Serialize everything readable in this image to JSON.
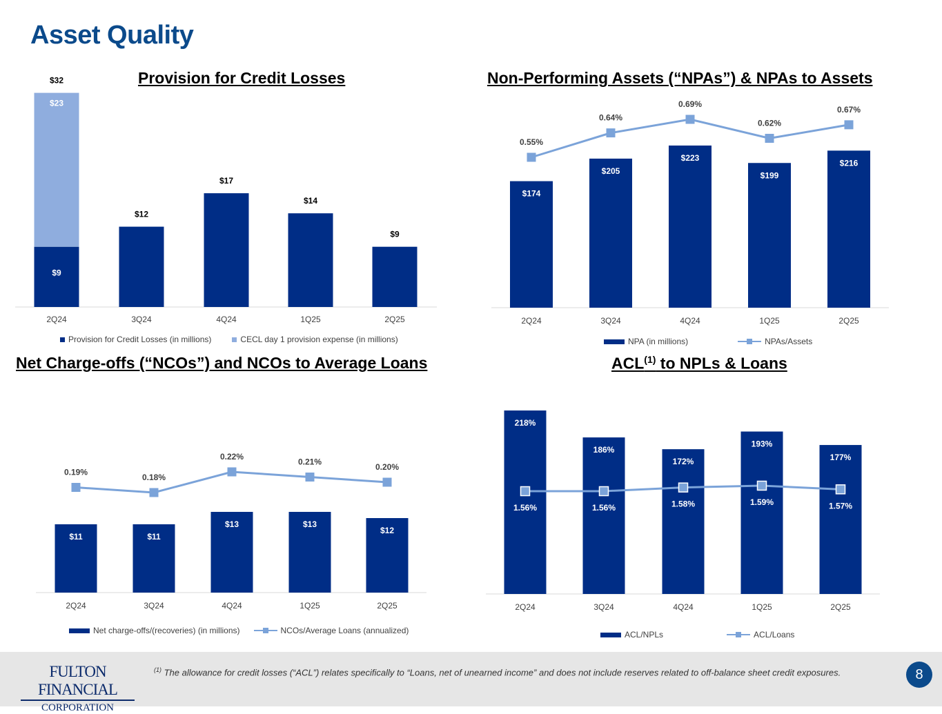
{
  "page": {
    "title": "Asset Quality",
    "page_number": "8",
    "company_line1": "FULTON FINANCIAL",
    "company_line2": "CORPORATION",
    "footnote_marker": "(1)",
    "footnote_text": " The allowance for credit losses (“ACL”) relates specifically to “Loans, net of unearned income” and does not include reserves related to off-balance sheet credit exposures."
  },
  "colors": {
    "dark_bar": "#002d86",
    "light_bar": "#8fadde",
    "line": "#7ba3d9",
    "title_blue": "#0b4a8b"
  },
  "chart_data": [
    {
      "id": "provision",
      "type": "bar",
      "title": "Provision for Credit Losses",
      "categories": [
        "2Q24",
        "3Q24",
        "4Q24",
        "1Q25",
        "2Q25"
      ],
      "series": [
        {
          "name": "Provision for Credit Losses (in millions)",
          "values": [
            9,
            12,
            17,
            14,
            9
          ],
          "labels": [
            "$9",
            "$12",
            "$17",
            "$14",
            "$9"
          ]
        },
        {
          "name": "CECL day 1 provision expense (in millions)",
          "values": [
            23,
            0,
            0,
            0,
            0
          ],
          "labels": [
            "$23",
            "",
            "",
            "",
            ""
          ]
        }
      ],
      "totals": [
        "$32",
        "",
        "",
        "",
        ""
      ],
      "stacked": true,
      "ylim": [
        0,
        32
      ]
    },
    {
      "id": "npa",
      "type": "bar+line",
      "title": "Non-Performing Assets (“NPAs”) & NPAs to Assets",
      "categories": [
        "2Q24",
        "3Q24",
        "4Q24",
        "1Q25",
        "2Q25"
      ],
      "bars": {
        "name": "NPA (in millions)",
        "values": [
          174,
          205,
          223,
          199,
          216
        ],
        "labels": [
          "$174",
          "$205",
          "$223",
          "$199",
          "$216"
        ]
      },
      "line": {
        "name": "NPAs/Assets",
        "values": [
          0.55,
          0.64,
          0.69,
          0.62,
          0.67
        ],
        "labels": [
          "0.55%",
          "0.64%",
          "0.69%",
          "0.62%",
          "0.67%"
        ]
      }
    },
    {
      "id": "nco",
      "type": "bar+line",
      "title": "Net Charge-offs (“NCOs”) and NCOs to Average Loans",
      "categories": [
        "2Q24",
        "3Q24",
        "4Q24",
        "1Q25",
        "2Q25"
      ],
      "bars": {
        "name": "Net charge-offs/(recoveries) (in millions)",
        "values": [
          11,
          11,
          13,
          13,
          12
        ],
        "labels": [
          "$11",
          "$11",
          "$13",
          "$13",
          "$12"
        ]
      },
      "line": {
        "name": "NCOs/Average Loans (annualized)",
        "values": [
          0.19,
          0.18,
          0.22,
          0.21,
          0.2
        ],
        "labels": [
          "0.19%",
          "0.18%",
          "0.22%",
          "0.21%",
          "0.20%"
        ]
      }
    },
    {
      "id": "acl",
      "type": "bar+line",
      "title_main": "ACL",
      "title_sup": "(1)",
      "title_rest": " to NPLs & Loans",
      "categories": [
        "2Q24",
        "3Q24",
        "4Q24",
        "1Q25",
        "2Q25"
      ],
      "bars": {
        "name": "ACL/NPLs",
        "values": [
          218,
          186,
          172,
          193,
          177
        ],
        "labels": [
          "218%",
          "186%",
          "172%",
          "193%",
          "177%"
        ]
      },
      "line": {
        "name": "ACL/Loans",
        "values": [
          1.56,
          1.56,
          1.58,
          1.59,
          1.57
        ],
        "labels": [
          "1.56%",
          "1.56%",
          "1.58%",
          "1.59%",
          "1.57%"
        ]
      }
    }
  ]
}
